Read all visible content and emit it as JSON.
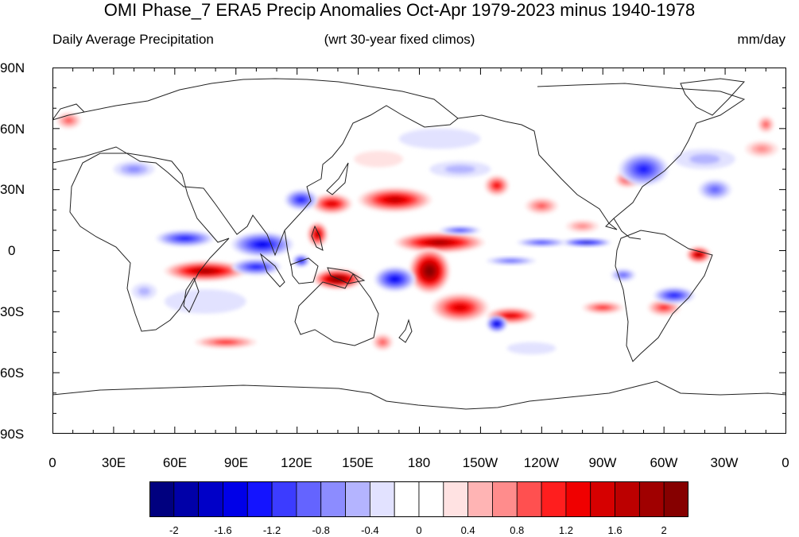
{
  "title": "OMI Phase_7 ERA5 Precip Anomalies Oct-Apr 1979-2023 minus 1940-1978",
  "subtitle": {
    "left": "Daily Average Precipitation",
    "center": "(wrt 30-year fixed climos)",
    "right": "mm/day"
  },
  "lat_ticks": [
    "90N",
    "60N",
    "30N",
    "0",
    "30S",
    "60S",
    "90S"
  ],
  "lon_ticks": [
    "0",
    "30E",
    "60E",
    "90E",
    "120E",
    "150E",
    "180",
    "150W",
    "120W",
    "90W",
    "60W",
    "30W",
    "0"
  ],
  "colorbar": {
    "colors": [
      "#00007f",
      "#0000a8",
      "#0000c8",
      "#0000e8",
      "#1414ff",
      "#3c3cff",
      "#6464ff",
      "#8c8cff",
      "#b4b4ff",
      "#e2e2ff",
      "#ffffff",
      "#ffffff",
      "#ffe2e2",
      "#ffb4b4",
      "#ff8c8c",
      "#ff5050",
      "#ff1e1e",
      "#f00000",
      "#d60000",
      "#bc0000",
      "#a00000",
      "#860000"
    ],
    "labels": [
      "-2",
      "-1.6",
      "-1.2",
      "-0.8",
      "-0.4",
      "0",
      "0.4",
      "0.8",
      "1.2",
      "1.6",
      "2"
    ],
    "label_box_index": [
      1,
      3,
      5,
      7,
      9,
      11,
      13,
      15,
      17,
      19,
      21
    ]
  },
  "anomalies": [
    {
      "lon": 137,
      "lat": 23,
      "rx": 10,
      "ry": 5,
      "v": 1.4
    },
    {
      "lon": 168,
      "lat": 25,
      "rx": 18,
      "ry": 6,
      "v": 1.6
    },
    {
      "lon": 190,
      "lat": 4,
      "rx": 22,
      "ry": 5,
      "v": 1.9
    },
    {
      "lon": 185,
      "lat": -10,
      "rx": 10,
      "ry": 11,
      "v": 2.3
    },
    {
      "lon": 130,
      "lat": 8,
      "rx": 5,
      "ry": 6,
      "v": 1.5
    },
    {
      "lon": 140,
      "lat": -14,
      "rx": 12,
      "ry": 5,
      "v": 2.2
    },
    {
      "lon": 75,
      "lat": -10,
      "rx": 20,
      "ry": 5,
      "v": 1.9
    },
    {
      "lon": 85,
      "lat": -45,
      "rx": 15,
      "ry": 3,
      "v": 1.0
    },
    {
      "lon": 200,
      "lat": -28,
      "rx": 14,
      "ry": 7,
      "v": 1.4
    },
    {
      "lon": 225,
      "lat": -32,
      "rx": 12,
      "ry": 4,
      "v": 1.4
    },
    {
      "lon": 218,
      "lat": 32,
      "rx": 6,
      "ry": 5,
      "v": 1.2
    },
    {
      "lon": 282,
      "lat": 35,
      "rx": 6,
      "ry": 4,
      "v": 1.0
    },
    {
      "lon": 317,
      "lat": -2,
      "rx": 6,
      "ry": 4,
      "v": 1.8
    },
    {
      "lon": 300,
      "lat": -28,
      "rx": 8,
      "ry": 4,
      "v": 1.0
    },
    {
      "lon": 270,
      "lat": -28,
      "rx": 10,
      "ry": 3,
      "v": 1.0
    },
    {
      "lon": 8,
      "lat": 64,
      "rx": 6,
      "ry": 4,
      "v": 0.8
    },
    {
      "lon": 350,
      "lat": 62,
      "rx": 4,
      "ry": 4,
      "v": 0.8
    },
    {
      "lon": 348,
      "lat": 50,
      "rx": 8,
      "ry": 4,
      "v": 0.6
    },
    {
      "lon": 162,
      "lat": -45,
      "rx": 5,
      "ry": 4,
      "v": 0.8
    },
    {
      "lon": 240,
      "lat": 22,
      "rx": 8,
      "ry": 4,
      "v": 0.8
    },
    {
      "lon": 260,
      "lat": 12,
      "rx": 8,
      "ry": 3,
      "v": 0.6
    },
    {
      "lon": 262,
      "lat": 4,
      "rx": 12,
      "ry": 2,
      "v": -1.6
    },
    {
      "lon": 240,
      "lat": 4,
      "rx": 12,
      "ry": 2,
      "v": -1.0
    },
    {
      "lon": 103,
      "lat": 3,
      "rx": 15,
      "ry": 6,
      "v": -1.4
    },
    {
      "lon": 122,
      "lat": 25,
      "rx": 8,
      "ry": 5,
      "v": -1.2
    },
    {
      "lon": 100,
      "lat": -8,
      "rx": 12,
      "ry": 4,
      "v": -1.2
    },
    {
      "lon": 122,
      "lat": -5,
      "rx": 4,
      "ry": 3,
      "v": -1.4
    },
    {
      "lon": 65,
      "lat": 6,
      "rx": 14,
      "ry": 4,
      "v": -1.2
    },
    {
      "lon": 168,
      "lat": -14,
      "rx": 10,
      "ry": 6,
      "v": -1.4
    },
    {
      "lon": 218,
      "lat": -36,
      "rx": 5,
      "ry": 4,
      "v": -1.5
    },
    {
      "lon": 290,
      "lat": 40,
      "rx": 12,
      "ry": 8,
      "v": -1.2
    },
    {
      "lon": 325,
      "lat": 30,
      "rx": 8,
      "ry": 5,
      "v": -0.8
    },
    {
      "lon": 280,
      "lat": -12,
      "rx": 6,
      "ry": 3,
      "v": -0.8
    },
    {
      "lon": 305,
      "lat": -22,
      "rx": 10,
      "ry": 4,
      "v": -1.2
    },
    {
      "lon": 225,
      "lat": -5,
      "rx": 12,
      "ry": 2,
      "v": -0.8
    },
    {
      "lon": 200,
      "lat": 10,
      "rx": 10,
      "ry": 2,
      "v": -1.0
    },
    {
      "lon": 200,
      "lat": 40,
      "rx": 15,
      "ry": 4,
      "v": -0.4
    },
    {
      "lon": 320,
      "lat": 45,
      "rx": 15,
      "ry": 5,
      "v": -0.4
    },
    {
      "lon": 40,
      "lat": 40,
      "rx": 10,
      "ry": 4,
      "v": -0.6
    },
    {
      "lon": 190,
      "lat": 55,
      "rx": 20,
      "ry": 5,
      "v": -0.3
    },
    {
      "lon": 75,
      "lat": -25,
      "rx": 20,
      "ry": 6,
      "v": -0.3
    },
    {
      "lon": 160,
      "lat": 45,
      "rx": 12,
      "ry": 4,
      "v": 0.3
    },
    {
      "lon": 235,
      "lat": -48,
      "rx": 12,
      "ry": 3,
      "v": -0.3
    },
    {
      "lon": 45,
      "lat": -20,
      "rx": 6,
      "ry": 4,
      "v": -0.4
    }
  ]
}
